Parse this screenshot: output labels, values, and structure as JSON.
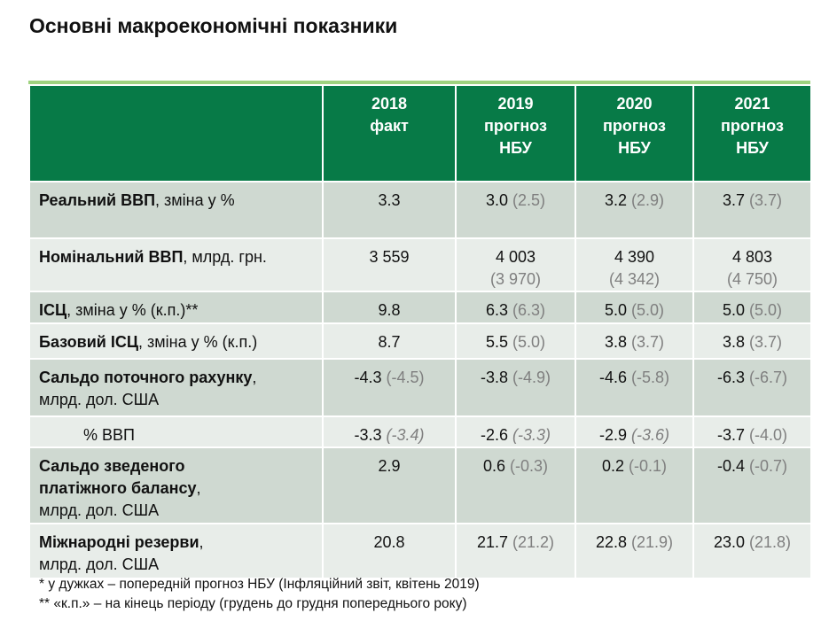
{
  "title": "Основні макроекономічні показники",
  "header": [
    "",
    "2018\nфакт",
    "2019\nпрогноз\nНБУ",
    "2020\nпрогноз\nНБУ",
    "2021\nпрогноз\nНБУ"
  ],
  "colors": {
    "header_bg": "#077a47",
    "accent_line": "#9fd27f",
    "row_dark": "#cfd9d1",
    "row_light": "#e8ede9",
    "prev_text": "#7f7f7f"
  },
  "rows": [
    {
      "bold": "Реальний ВВП",
      "rest": ", зміна у %",
      "values": [
        {
          "v": "3.3"
        },
        {
          "v": "3.0",
          "p": "(2.5)"
        },
        {
          "v": "3.2",
          "p": "(2.9)"
        },
        {
          "v": "3.7",
          "p": "(3.7)"
        }
      ],
      "shade": "dark",
      "h": 64
    },
    {
      "bold": "Номінальний ВВП",
      "rest": ", млрд. грн.",
      "values": [
        {
          "v": "3 559"
        },
        {
          "v": "4 003",
          "p": "(3 970)",
          "br": true
        },
        {
          "v": "4 390",
          "p": "(4 342)",
          "br": true
        },
        {
          "v": "4 803",
          "p": "(4 750)",
          "br": true
        }
      ],
      "shade": "light",
      "h": 60
    },
    {
      "bold": "ІСЦ",
      "rest": ", зміна у % (к.п.)**",
      "values": [
        {
          "v": "9.8"
        },
        {
          "v": "6.3",
          "p": "(6.3)"
        },
        {
          "v": "5.0",
          "p": "(5.0)"
        },
        {
          "v": "5.0",
          "p": "(5.0)"
        }
      ],
      "shade": "dark",
      "h": 36
    },
    {
      "bold": "Базовий ІСЦ",
      "rest": ", зміна у % (к.п.)",
      "values": [
        {
          "v": "8.7"
        },
        {
          "v": "5.5",
          "p": "(5.0)"
        },
        {
          "v": "3.8",
          "p": "(3.7)"
        },
        {
          "v": "3.8",
          "p": "(3.7)"
        }
      ],
      "shade": "light",
      "h": 40
    },
    {
      "bold": "Сальдо поточного рахунку",
      "rest": ",\nмлрд. дол. США",
      "values": [
        {
          "v": "-4.3",
          "p": "(-4.5)"
        },
        {
          "v": "-3.8",
          "p": "(-4.9)"
        },
        {
          "v": "-4.6",
          "p": "(-5.8)"
        },
        {
          "v": "-6.3",
          "p": "(-6.7)"
        }
      ],
      "shade": "dark",
      "h": 65
    },
    {
      "bold": "",
      "rest": "% ВВП",
      "indent": true,
      "values": [
        {
          "v": "-3.3",
          "p": "(-3.4)",
          "it": true
        },
        {
          "v": "-2.6",
          "p": "(-3.3)",
          "it": true
        },
        {
          "v": "-2.9",
          "p": "(-3.6)",
          "it": true
        },
        {
          "v": "-3.7",
          "p": "(-4.0)"
        }
      ],
      "shade": "light",
      "h": 34
    },
    {
      "bold": "Сальдо зведеного\nплатіжного балансу",
      "rest": ",\nмлрд. дол. США",
      "values": [
        {
          "v": "2.9"
        },
        {
          "v": "0.6",
          "p": "(-0.3)"
        },
        {
          "v": "0.2",
          "p": "(-0.1)"
        },
        {
          "v": "-0.4",
          "p": "(-0.7)"
        }
      ],
      "shade": "dark",
      "h": 86
    },
    {
      "bold": "Міжнародні резерви",
      "rest": ",\nмлрд. дол. США",
      "values": [
        {
          "v": "20.8"
        },
        {
          "v": "21.7",
          "p": "(21.2)"
        },
        {
          "v": "22.8",
          "p": "(21.9)"
        },
        {
          "v": "23.0",
          "p": "(21.8)"
        }
      ],
      "shade": "light",
      "h": 62
    }
  ],
  "footnotes": [
    "* у дужках – попередній прогноз НБУ (Інфляційний звіт, квітень 2019)",
    "** «к.п.» – на кінець періоду (грудень до грудня попереднього року)"
  ]
}
